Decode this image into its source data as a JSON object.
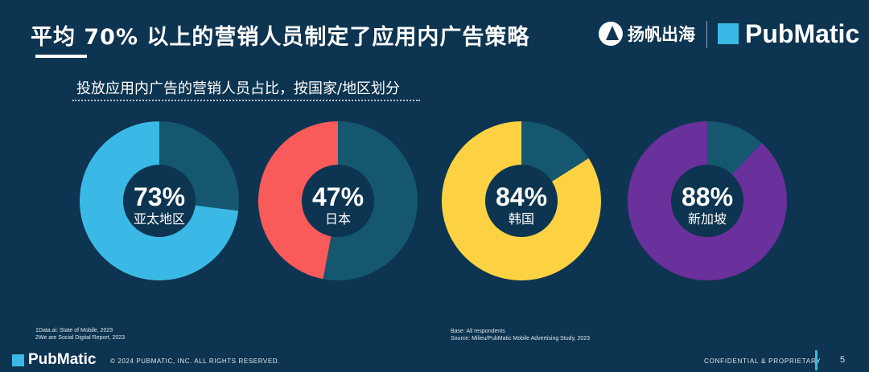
{
  "header": {
    "title": "平均 70% 以上的营销人员制定了应用内广告策略",
    "brand_yangfan": "扬帆出海",
    "brand_pubmatic": "PubMatic"
  },
  "chart_data": {
    "type": "pie",
    "title": "投放应用内广告的营销人员占比，按国家/地区划分",
    "series": [
      {
        "name": "亚太地区",
        "value": 73,
        "label": "73%",
        "color": "#3bb9e6"
      },
      {
        "name": "日本",
        "value": 47,
        "label": "47%",
        "color": "#f95a5a"
      },
      {
        "name": "韩国",
        "value": 84,
        "label": "84%",
        "color": "#fcd243"
      },
      {
        "name": "新加坡",
        "value": 88,
        "label": "88%",
        "color": "#6a309b"
      }
    ],
    "remainder_color": "#14576f",
    "direction": "counter-clockwise from top"
  },
  "notes": {
    "sources_left": [
      "1Data.ai: State of Mobile, 2023",
      "2We are Social Digital Report, 2023"
    ],
    "sources_right": [
      "Base: All respondents",
      "Source: Milieu/PubMatic Mobile Advertising Study, 2023"
    ]
  },
  "footer": {
    "logo": "PubMatic",
    "copyright": "© 2024 PUBMATIC, INC. ALL RIGHTS RESERVED.",
    "confidential": "CONFIDENTIAL & PROPRIETARY",
    "page_number": "5"
  },
  "colors": {
    "background": "#0d3450",
    "accent": "#3bb9e6"
  }
}
